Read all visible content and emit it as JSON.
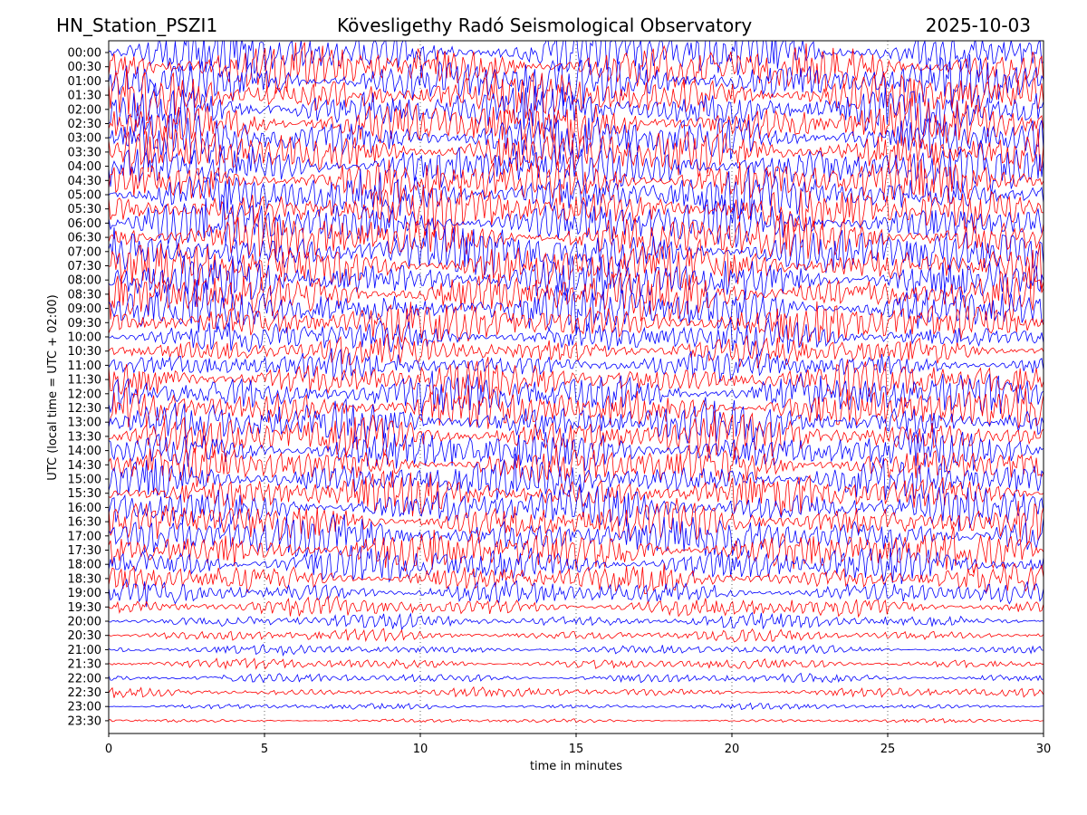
{
  "header": {
    "station": "HN_Station_PSZI1",
    "title": "Kövesligethy Radó Seismological Observatory",
    "date": "2025-10-03"
  },
  "chart_data": {
    "type": "line",
    "title": "Kövesligethy Radó Seismological Observatory",
    "xlabel": "time in minutes",
    "ylabel": "UTC (local time = UTC + 02:00)",
    "xlim": [
      0,
      30
    ],
    "x_ticks": [
      0,
      5,
      10,
      15,
      20,
      25,
      30
    ],
    "grid": "vertical dotted lines at 5-minute intervals",
    "trace_colors": [
      "#0000ff",
      "#ff0000"
    ],
    "rows": [
      "00:00",
      "00:30",
      "01:00",
      "01:30",
      "02:00",
      "02:30",
      "03:00",
      "03:30",
      "04:00",
      "04:30",
      "05:00",
      "05:30",
      "06:00",
      "06:30",
      "07:00",
      "07:30",
      "08:00",
      "08:30",
      "09:00",
      "09:30",
      "10:00",
      "10:30",
      "11:00",
      "11:30",
      "12:00",
      "12:30",
      "13:00",
      "13:30",
      "14:00",
      "14:30",
      "15:00",
      "15:30",
      "16:00",
      "16:30",
      "17:00",
      "17:30",
      "18:00",
      "18:30",
      "19:00",
      "19:30",
      "20:00",
      "20:30",
      "21:00",
      "21:30",
      "22:00",
      "22:30",
      "23:00",
      "23:30"
    ],
    "relative_amplitude": [
      1.0,
      1.0,
      1.0,
      1.0,
      1.0,
      1.0,
      1.0,
      1.0,
      1.0,
      1.0,
      1.0,
      1.0,
      1.0,
      1.0,
      1.0,
      1.0,
      1.0,
      1.0,
      1.0,
      0.9,
      0.7,
      0.65,
      0.6,
      0.8,
      0.9,
      0.9,
      0.9,
      0.9,
      0.9,
      0.85,
      0.85,
      0.85,
      0.85,
      0.85,
      0.9,
      0.9,
      0.75,
      0.6,
      0.5,
      0.4,
      0.3,
      0.25,
      0.2,
      0.22,
      0.2,
      0.2,
      0.12,
      0.08
    ]
  }
}
